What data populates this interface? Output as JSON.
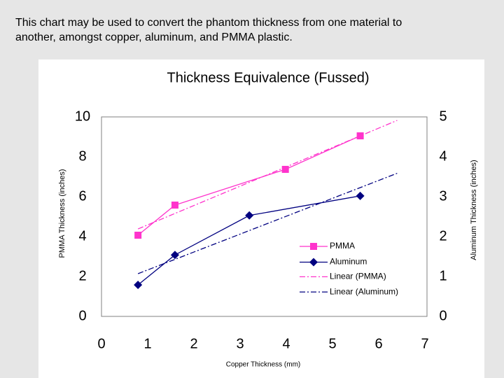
{
  "caption": [
    "This chart may be used to convert the phantom thickness from one material to",
    "another, amongst copper, aluminum, and PMMA plastic."
  ],
  "chart_data": {
    "type": "line",
    "title": "Thickness Equivalence (Fussed)",
    "x_label": "Copper Thickness (mm)",
    "y_label": "PMMA Thickness (inches)",
    "y2_label": "Aluminum Thickness (inches)",
    "xlim": [
      0,
      7
    ],
    "xticks": [
      0,
      1,
      2,
      3,
      4,
      5,
      6,
      7
    ],
    "ylim": [
      0,
      10
    ],
    "yticks": [
      0,
      2,
      4,
      6,
      8,
      10
    ],
    "y2lim": [
      0,
      5
    ],
    "y2ticks": [
      0,
      1,
      2,
      3,
      4,
      5
    ],
    "series": [
      {
        "name": "PMMA",
        "color": "#ff33cc",
        "marker": "square",
        "trendline": "Linear (PMMA)",
        "x": [
          0.79,
          1.59,
          3.98,
          5.6
        ],
        "values": [
          4.07,
          5.58,
          7.37,
          9.05
        ]
      },
      {
        "name": "Aluminum",
        "color": "#000080",
        "marker": "diamond",
        "axis": "y2",
        "trendline": "Linear (Aluminum)",
        "x": [
          0.79,
          1.59,
          3.2,
          5.6
        ],
        "values": [
          0.79,
          1.54,
          2.53,
          3.02
        ]
      }
    ]
  }
}
